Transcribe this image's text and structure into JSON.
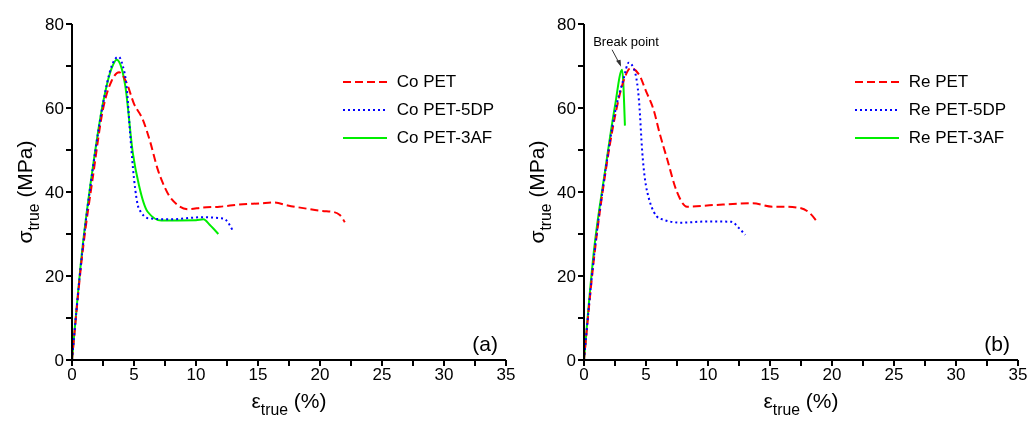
{
  "chart_data": [
    {
      "type": "line",
      "xlabel": "ε$_{true}$ (%)",
      "ylabel": "σ$_{true}$ (MPa)",
      "xlim": [
        0,
        35
      ],
      "ylim": [
        0,
        80
      ],
      "xticks": [
        0,
        {
          "value": 2.5,
          "label": null
        },
        5,
        {
          "value": 7.5,
          "label": null
        },
        10,
        {
          "value": 12.5,
          "label": null
        },
        15,
        {
          "value": 17.5,
          "label": null
        },
        20,
        {
          "value": 22.5,
          "label": null
        },
        25,
        {
          "value": 27.5,
          "label": null
        },
        30,
        {
          "value": 32.5,
          "label": null
        },
        35
      ],
      "yticks": [
        0,
        {
          "value": 10,
          "label": null
        },
        20,
        {
          "value": 30,
          "label": null
        },
        40,
        {
          "value": 50,
          "label": null
        },
        60,
        {
          "value": 70,
          "label": null
        },
        80
      ],
      "grid": false,
      "legend": "top right",
      "marker": "none",
      "annotations": [
        "(a)"
      ],
      "series": [
        {
          "name": "Co PET",
          "color": "#ff0000",
          "line_style": "dashed",
          "x": [
            0,
            0.8,
            1.7,
            2.5,
            3.2,
            3.8,
            4.4,
            5.0,
            5.7,
            6.3,
            6.9,
            7.5,
            8.0,
            9.4,
            10.5,
            11.9,
            13.5,
            15.2,
            16.3,
            17.4,
            19.0,
            20.2,
            21.0,
            21.6,
            22.0
          ],
          "values": [
            0,
            24.3,
            43.9,
            59.7,
            66.5,
            68.5,
            66,
            61,
            57.3,
            52,
            45.5,
            41,
            38.4,
            35.9,
            36.3,
            36.5,
            37,
            37.3,
            37.5,
            36.8,
            36,
            35.5,
            35.3,
            34.5,
            32.8
          ]
        },
        {
          "name": "Co PET-5DP",
          "color": "#0000ff",
          "line_style": "dotted",
          "x": [
            0,
            0.8,
            1.7,
            2.5,
            3.2,
            3.75,
            4.1,
            4.4,
            4.7,
            5.0,
            5.4,
            6.2,
            8.0,
            10.5,
            12.2,
            13.0
          ],
          "values": [
            0,
            25,
            46,
            61,
            70,
            72.2,
            70,
            65.2,
            53.4,
            43.2,
            36,
            33.7,
            33.5,
            34,
            33.7,
            30.6
          ]
        },
        {
          "name": "Co PET-3AF",
          "color": "#00ee00",
          "line_style": "solid",
          "x": [
            0,
            0.8,
            1.7,
            2.5,
            3.2,
            3.6,
            4.0,
            4.3,
            4.9,
            5.4,
            6.1,
            7.2,
            10.0,
            10.6,
            11.1,
            11.8
          ],
          "values": [
            0,
            25.5,
            46.3,
            61.2,
            69.5,
            71.5,
            69.5,
            65.2,
            49.4,
            41.6,
            35.3,
            33.2,
            33.3,
            33.5,
            32.2,
            30.0
          ]
        }
      ]
    },
    {
      "type": "line",
      "xlabel": "ε$_{true}$ (%)",
      "ylabel": "σ$_{true}$ (MPa)",
      "xlim": [
        0,
        35
      ],
      "ylim": [
        0,
        80
      ],
      "xticks": [
        0,
        {
          "value": 2.5,
          "label": null
        },
        5,
        {
          "value": 7.5,
          "label": null
        },
        10,
        {
          "value": 12.5,
          "label": null
        },
        15,
        {
          "value": 17.5,
          "label": null
        },
        20,
        {
          "value": 22.5,
          "label": null
        },
        25,
        {
          "value": 27.5,
          "label": null
        },
        30,
        {
          "value": 32.5,
          "label": null
        },
        35
      ],
      "yticks": [
        0,
        {
          "value": 10,
          "label": null
        },
        20,
        {
          "value": 30,
          "label": null
        },
        40,
        {
          "value": 50,
          "label": null
        },
        60,
        {
          "value": 70,
          "label": null
        },
        80
      ],
      "grid": false,
      "legend": "top right",
      "marker": "none",
      "annotations": [
        {
          "text": "Break point",
          "x": 3.07,
          "y": 69.1
        },
        "(b)"
      ],
      "series": [
        {
          "name": "Re PET",
          "color": "#ff0000",
          "line_style": "dashed",
          "x": [
            0,
            0.8,
            1.7,
            2.5,
            3.2,
            3.76,
            4.45,
            5.0,
            5.6,
            6.1,
            6.7,
            7.5,
            8.3,
            10.5,
            13.6,
            15.2,
            16.3,
            17.4,
            18.2,
            18.8
          ],
          "values": [
            0,
            24,
            44,
            58,
            66.5,
            69.5,
            67.9,
            64,
            59.7,
            54,
            47.9,
            40,
            36.5,
            36.9,
            37.3,
            36.5,
            36.5,
            36.2,
            35,
            32.9
          ]
        },
        {
          "name": "Re PET-5DP",
          "color": "#0000ff",
          "line_style": "dotted",
          "x": [
            0,
            0.8,
            1.7,
            2.5,
            3.2,
            3.6,
            4.0,
            4.45,
            4.7,
            5.1,
            6.1,
            7.8,
            10.0,
            11.9,
            12.5,
            13.0
          ],
          "values": [
            0,
            24.5,
            44.5,
            59,
            67,
            70.8,
            69.5,
            61.2,
            49.4,
            40,
            33.7,
            32.7,
            33,
            32.9,
            31.4,
            29.8
          ]
        },
        {
          "name": "Re PET-3AF",
          "color": "#00ee00",
          "line_style": "solid",
          "x": [
            0,
            0.8,
            1.7,
            2.5,
            3.07,
            3.3
          ],
          "values": [
            0,
            26,
            45,
            60.5,
            69.1,
            55.8
          ]
        }
      ]
    }
  ]
}
